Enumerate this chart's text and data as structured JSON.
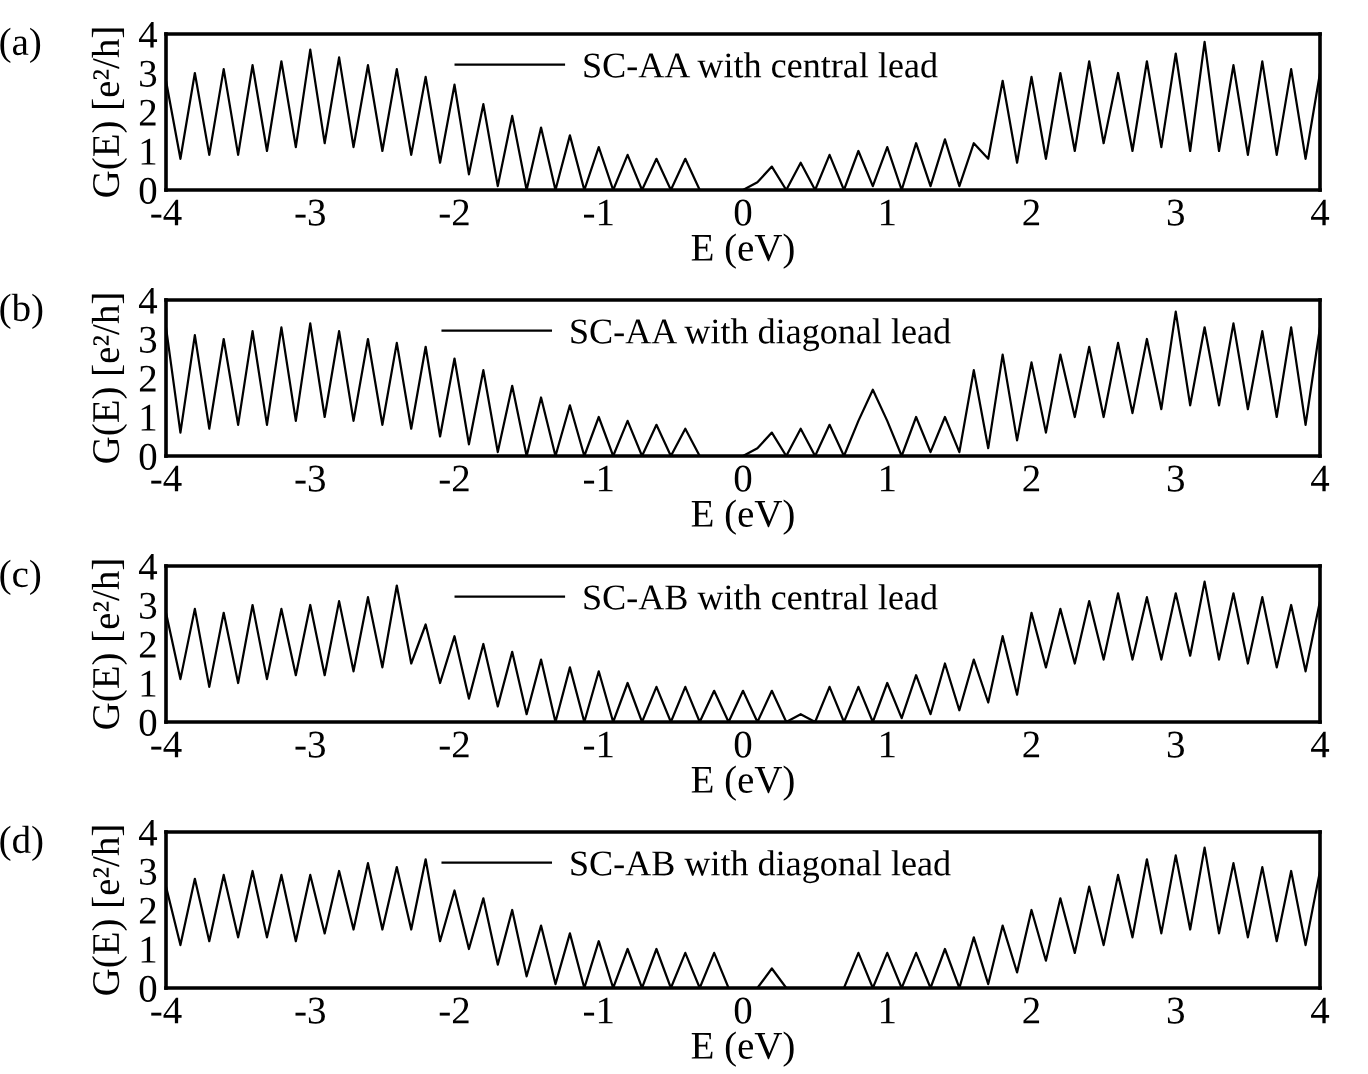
{
  "chart_data": [
    {
      "type": "line",
      "annotations": [
        "(a)"
      ],
      "xlabel": "E (eV)",
      "ylabel": "G(E) [e²/h]",
      "xlim": [
        -4,
        4
      ],
      "ylim": [
        0,
        4
      ],
      "xticks": [
        -4,
        -3,
        -2,
        -1,
        0,
        1,
        2,
        3,
        4
      ],
      "yticks": [
        0,
        1,
        2,
        3,
        4
      ],
      "legend": "top",
      "x": [
        -4.0,
        -3.9,
        -3.8,
        -3.7,
        -3.6,
        -3.5,
        -3.4,
        -3.3,
        -3.2,
        -3.1,
        -3.0,
        -2.9,
        -2.8,
        -2.7,
        -2.6,
        -2.5,
        -2.4,
        -2.3,
        -2.2,
        -2.1,
        -2.0,
        -1.9,
        -1.8,
        -1.7,
        -1.6,
        -1.5,
        -1.4,
        -1.3,
        -1.2,
        -1.1,
        -1.0,
        -0.9,
        -0.8,
        -0.7,
        -0.6,
        -0.5,
        -0.4,
        -0.3,
        -0.2,
        -0.1,
        0.0,
        0.1,
        0.2,
        0.3,
        0.4,
        0.5,
        0.6,
        0.7,
        0.8,
        0.9,
        1.0,
        1.1,
        1.2,
        1.3,
        1.4,
        1.5,
        1.6,
        1.7,
        1.8,
        1.9,
        2.0,
        2.1,
        2.2,
        2.3,
        2.4,
        2.5,
        2.6,
        2.7,
        2.8,
        2.9,
        3.0,
        3.1,
        3.2,
        3.3,
        3.4,
        3.5,
        3.6,
        3.7,
        3.8,
        3.9,
        4.0
      ],
      "series": [
        {
          "name": "SC-AA with central lead",
          "color": "#000000",
          "values": [
            2.8,
            0.8,
            3.0,
            0.9,
            3.1,
            0.9,
            3.2,
            1.0,
            3.3,
            1.1,
            3.6,
            1.2,
            3.4,
            1.1,
            3.2,
            1.0,
            3.1,
            0.9,
            2.9,
            0.7,
            2.7,
            0.4,
            2.2,
            0.1,
            1.9,
            0,
            1.6,
            0,
            1.4,
            0,
            1.1,
            0,
            0.9,
            0,
            0.8,
            0,
            0.8,
            0,
            0,
            0,
            0,
            0.2,
            0.6,
            0,
            0.7,
            0,
            0.9,
            0,
            1.0,
            0.1,
            1.1,
            0,
            1.2,
            0.1,
            1.3,
            0.1,
            1.2,
            0.8,
            2.8,
            0.7,
            2.9,
            0.8,
            3.0,
            1.0,
            3.3,
            1.2,
            3.0,
            1.0,
            3.3,
            1.1,
            3.5,
            1.0,
            3.8,
            1.0,
            3.2,
            0.9,
            3.3,
            0.9,
            3.1,
            0.8,
            3.0
          ]
        }
      ]
    },
    {
      "type": "line",
      "annotations": [
        "(b)"
      ],
      "xlabel": "E (eV)",
      "ylabel": "G(E) [e²/h]",
      "xlim": [
        -4,
        4
      ],
      "ylim": [
        0,
        4
      ],
      "xticks": [
        -4,
        -3,
        -2,
        -1,
        0,
        1,
        2,
        3,
        4
      ],
      "yticks": [
        0,
        1,
        2,
        3,
        4
      ],
      "legend": "top",
      "x": [
        -4.0,
        -3.9,
        -3.8,
        -3.7,
        -3.6,
        -3.5,
        -3.4,
        -3.3,
        -3.2,
        -3.1,
        -3.0,
        -2.9,
        -2.8,
        -2.7,
        -2.6,
        -2.5,
        -2.4,
        -2.3,
        -2.2,
        -2.1,
        -2.0,
        -1.9,
        -1.8,
        -1.7,
        -1.6,
        -1.5,
        -1.4,
        -1.3,
        -1.2,
        -1.1,
        -1.0,
        -0.9,
        -0.8,
        -0.7,
        -0.6,
        -0.5,
        -0.4,
        -0.3,
        -0.2,
        -0.1,
        0.0,
        0.1,
        0.2,
        0.3,
        0.4,
        0.5,
        0.6,
        0.7,
        0.8,
        0.9,
        1.0,
        1.1,
        1.2,
        1.3,
        1.4,
        1.5,
        1.6,
        1.7,
        1.8,
        1.9,
        2.0,
        2.1,
        2.2,
        2.3,
        2.4,
        2.5,
        2.6,
        2.7,
        2.8,
        2.9,
        3.0,
        3.1,
        3.2,
        3.3,
        3.4,
        3.5,
        3.6,
        3.7,
        3.8,
        3.9,
        4.0
      ],
      "series": [
        {
          "name": "SC-AA with diagonal lead",
          "color": "#000000",
          "values": [
            3.3,
            0.6,
            3.1,
            0.7,
            3.0,
            0.8,
            3.2,
            0.8,
            3.3,
            0.9,
            3.4,
            1.0,
            3.2,
            0.9,
            3.0,
            0.8,
            2.9,
            0.7,
            2.8,
            0.5,
            2.5,
            0.3,
            2.2,
            0.1,
            1.8,
            0,
            1.5,
            0,
            1.3,
            0,
            1.0,
            0,
            0.9,
            0,
            0.8,
            0,
            0.7,
            0,
            0,
            0,
            0,
            0.2,
            0.6,
            0,
            0.7,
            0,
            0.8,
            0,
            0.9,
            1.7,
            0.9,
            0,
            1.0,
            0.1,
            1.0,
            0.1,
            2.2,
            0.2,
            2.6,
            0.4,
            2.4,
            0.6,
            2.6,
            1.0,
            2.8,
            1.0,
            2.9,
            1.1,
            3.0,
            1.2,
            3.7,
            1.3,
            3.3,
            1.3,
            3.4,
            1.2,
            3.2,
            1.0,
            3.3,
            0.8,
            3.3
          ]
        }
      ]
    },
    {
      "type": "line",
      "annotations": [
        "(c)"
      ],
      "xlabel": "E (eV)",
      "ylabel": "G(E) [e²/h]",
      "xlim": [
        -4,
        4
      ],
      "ylim": [
        0,
        4
      ],
      "xticks": [
        -4,
        -3,
        -2,
        -1,
        0,
        1,
        2,
        3,
        4
      ],
      "yticks": [
        0,
        1,
        2,
        3,
        4
      ],
      "legend": "top",
      "x": [
        -4.0,
        -3.9,
        -3.8,
        -3.7,
        -3.6,
        -3.5,
        -3.4,
        -3.3,
        -3.2,
        -3.1,
        -3.0,
        -2.9,
        -2.8,
        -2.7,
        -2.6,
        -2.5,
        -2.4,
        -2.3,
        -2.2,
        -2.1,
        -2.0,
        -1.9,
        -1.8,
        -1.7,
        -1.6,
        -1.5,
        -1.4,
        -1.3,
        -1.2,
        -1.1,
        -1.0,
        -0.9,
        -0.8,
        -0.7,
        -0.6,
        -0.5,
        -0.4,
        -0.3,
        -0.2,
        -0.1,
        0.0,
        0.1,
        0.2,
        0.3,
        0.4,
        0.5,
        0.6,
        0.7,
        0.8,
        0.9,
        1.0,
        1.1,
        1.2,
        1.3,
        1.4,
        1.5,
        1.6,
        1.7,
        1.8,
        1.9,
        2.0,
        2.1,
        2.2,
        2.3,
        2.4,
        2.5,
        2.6,
        2.7,
        2.8,
        2.9,
        3.0,
        3.1,
        3.2,
        3.3,
        3.4,
        3.5,
        3.6,
        3.7,
        3.8,
        3.9,
        4.0
      ],
      "series": [
        {
          "name": "SC-AB with central lead",
          "color": "#000000",
          "values": [
            2.8,
            1.1,
            2.9,
            0.9,
            2.8,
            1.0,
            3.0,
            1.1,
            2.9,
            1.2,
            3.0,
            1.2,
            3.1,
            1.3,
            3.2,
            1.4,
            3.5,
            1.5,
            2.5,
            1.0,
            2.2,
            0.6,
            2.0,
            0.4,
            1.8,
            0.2,
            1.6,
            0,
            1.4,
            0,
            1.3,
            0,
            1.0,
            0,
            0.9,
            0,
            0.9,
            0,
            0.8,
            0,
            0.8,
            0,
            0.8,
            0,
            0.2,
            0,
            0.9,
            0,
            0.9,
            0,
            1.0,
            0.1,
            1.2,
            0.2,
            1.5,
            0.3,
            1.6,
            0.5,
            2.2,
            0.7,
            2.8,
            1.4,
            2.9,
            1.5,
            3.1,
            1.6,
            3.3,
            1.6,
            3.2,
            1.6,
            3.3,
            1.7,
            3.6,
            1.6,
            3.3,
            1.5,
            3.2,
            1.4,
            3.0,
            1.3,
            3.1
          ]
        }
      ]
    },
    {
      "type": "line",
      "annotations": [
        "(d)"
      ],
      "xlabel": "E (eV)",
      "ylabel": "G(E) [e²/h]",
      "xlim": [
        -4,
        4
      ],
      "ylim": [
        0,
        4
      ],
      "xticks": [
        -4,
        -3,
        -2,
        -1,
        0,
        1,
        2,
        3,
        4
      ],
      "yticks": [
        0,
        1,
        2,
        3,
        4
      ],
      "legend": "top",
      "x": [
        -4.0,
        -3.9,
        -3.8,
        -3.7,
        -3.6,
        -3.5,
        -3.4,
        -3.3,
        -3.2,
        -3.1,
        -3.0,
        -2.9,
        -2.8,
        -2.7,
        -2.6,
        -2.5,
        -2.4,
        -2.3,
        -2.2,
        -2.1,
        -2.0,
        -1.9,
        -1.8,
        -1.7,
        -1.6,
        -1.5,
        -1.4,
        -1.3,
        -1.2,
        -1.1,
        -1.0,
        -0.9,
        -0.8,
        -0.7,
        -0.6,
        -0.5,
        -0.4,
        -0.3,
        -0.2,
        -0.1,
        0.0,
        0.1,
        0.2,
        0.3,
        0.4,
        0.5,
        0.6,
        0.7,
        0.8,
        0.9,
        1.0,
        1.1,
        1.2,
        1.3,
        1.4,
        1.5,
        1.6,
        1.7,
        1.8,
        1.9,
        2.0,
        2.1,
        2.2,
        2.3,
        2.4,
        2.5,
        2.6,
        2.7,
        2.8,
        2.9,
        3.0,
        3.1,
        3.2,
        3.3,
        3.4,
        3.5,
        3.6,
        3.7,
        3.8,
        3.9,
        4.0
      ],
      "series": [
        {
          "name": "SC-AB with diagonal lead",
          "color": "#000000",
          "values": [
            2.6,
            1.1,
            2.8,
            1.2,
            2.9,
            1.3,
            3.0,
            1.3,
            2.9,
            1.2,
            2.9,
            1.4,
            3.0,
            1.5,
            3.2,
            1.5,
            3.1,
            1.5,
            3.3,
            1.2,
            2.5,
            1.0,
            2.3,
            0.6,
            2.0,
            0.3,
            1.6,
            0.1,
            1.4,
            0,
            1.2,
            0,
            1.0,
            0,
            1.0,
            0,
            0.9,
            0,
            0.9,
            0,
            0,
            0,
            0.5,
            0,
            0,
            0,
            0,
            0,
            0.9,
            0,
            0.9,
            0,
            0.9,
            0,
            1.0,
            0,
            1.3,
            0.1,
            1.6,
            0.4,
            2.0,
            0.7,
            2.3,
            0.9,
            2.6,
            1.1,
            2.9,
            1.3,
            3.3,
            1.4,
            3.4,
            1.5,
            3.6,
            1.4,
            3.2,
            1.3,
            3.1,
            1.2,
            3.0,
            1.1,
            3.0
          ]
        }
      ]
    }
  ]
}
